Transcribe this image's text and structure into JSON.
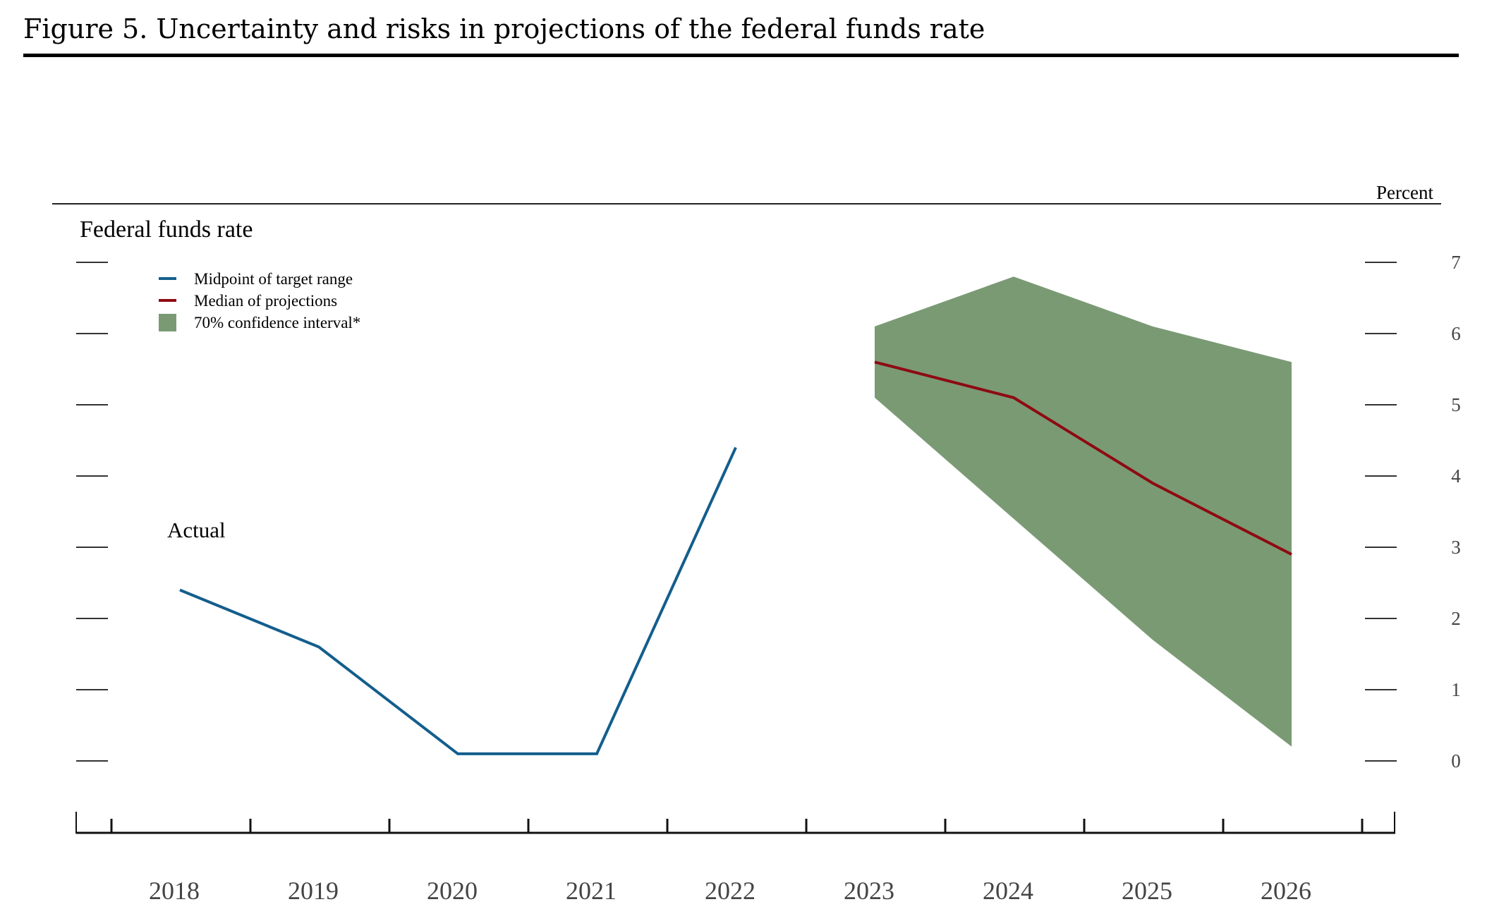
{
  "figure": {
    "title": "Figure 5. Uncertainty and risks in projections of the federal funds rate"
  },
  "chart_data": {
    "type": "line",
    "title": "Federal funds rate",
    "ylabel": "Percent",
    "xlabel": "",
    "ylim": [
      0,
      7
    ],
    "yticks": [
      0,
      1,
      2,
      3,
      4,
      5,
      6,
      7
    ],
    "ytick_labels": [
      "0",
      "1",
      "2",
      "3",
      "4",
      "5",
      "6",
      "7"
    ],
    "categories": [
      "2018",
      "2019",
      "2020",
      "2021",
      "2022",
      "2023",
      "2024",
      "2025",
      "2026"
    ],
    "grid": false,
    "legend_position": "top-left",
    "legend": [
      {
        "label": "Midpoint of target range",
        "kind": "line",
        "color": "#135e8d"
      },
      {
        "label": "Median of projections",
        "kind": "line",
        "color": "#8e0a12"
      },
      {
        "label": "70% confidence interval*",
        "kind": "area",
        "color": "#7a9a74"
      }
    ],
    "annotations": [
      {
        "text": "Actual",
        "near": "2018"
      }
    ],
    "series": [
      {
        "name": "Midpoint of target range",
        "color": "#135e8d",
        "x": [
          "2018",
          "2019",
          "2020",
          "2021",
          "2022"
        ],
        "values": [
          2.4,
          1.6,
          0.1,
          0.1,
          4.4
        ]
      },
      {
        "name": "Median of projections",
        "color": "#8e0a12",
        "x": [
          "2023",
          "2024",
          "2025",
          "2026"
        ],
        "values": [
          5.6,
          5.1,
          3.9,
          2.9
        ]
      }
    ],
    "bands": [
      {
        "name": "70% confidence interval*",
        "color": "#7a9a74",
        "x": [
          "2023",
          "2024",
          "2025",
          "2026"
        ],
        "upper": [
          6.1,
          6.8,
          6.1,
          5.6
        ],
        "lower": [
          5.1,
          3.4,
          1.7,
          0.2
        ]
      }
    ]
  }
}
